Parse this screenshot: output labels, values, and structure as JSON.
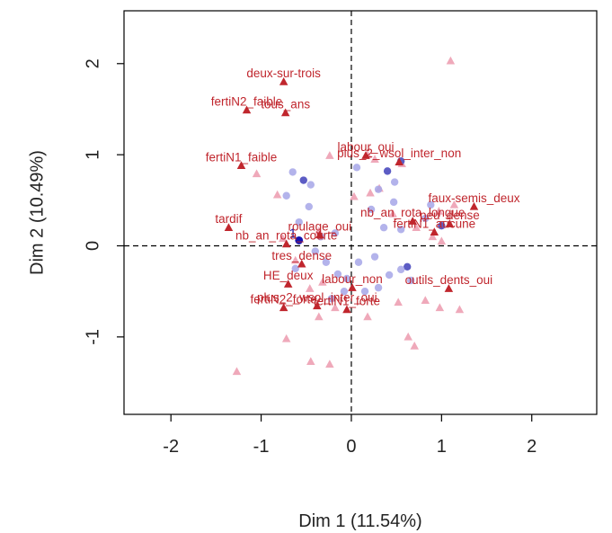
{
  "chart_data": {
    "type": "scatter",
    "xlabel": "Dim 1 (11.54%)",
    "ylabel": "Dim 2 (10.49%)",
    "xlim": [
      -2.52,
      2.72
    ],
    "ylim": [
      -1.85,
      2.58
    ],
    "x_ticks": [
      -2,
      -1,
      0,
      1,
      2
    ],
    "y_ticks": [
      -1,
      0,
      1,
      2
    ],
    "x_tick_labels": [
      "-2",
      "-1",
      "0",
      "1",
      "2"
    ],
    "y_tick_labels": [
      "-1",
      "0",
      "1",
      "2"
    ],
    "reference_lines": {
      "x": 0,
      "y": 0,
      "style": "dashed"
    },
    "grid": false,
    "colors": {
      "category": "#c0262d",
      "category_faded": "#efa9ba",
      "individual": "#a6a6e8",
      "individual_dark": "#5c5cc4",
      "highlight": "#1212b0"
    },
    "categories": [
      {
        "label": "deux-sur-trois",
        "x": -0.75,
        "y": 1.8
      },
      {
        "label": "tous_ans",
        "x": -0.73,
        "y": 1.46
      },
      {
        "label": "fertiN2_faible",
        "x": -1.16,
        "y": 1.49
      },
      {
        "label": "labour_oui",
        "x": 0.16,
        "y": 0.99
      },
      {
        "label": "fertiN1_faible",
        "x": -1.22,
        "y": 0.88
      },
      {
        "label": "plus_2_wsol_inter_non",
        "x": 0.53,
        "y": 0.92
      },
      {
        "label": "faux-semis_deux",
        "x": 1.36,
        "y": 0.43
      },
      {
        "label": "nb_an_rota_longue",
        "x": 0.68,
        "y": 0.27
      },
      {
        "label": "peu_dense",
        "x": 1.09,
        "y": 0.24
      },
      {
        "label": "tardif",
        "x": -1.36,
        "y": 0.2
      },
      {
        "label": "roulage_oui",
        "x": -0.35,
        "y": 0.12
      },
      {
        "label": "fertiN1_aucune",
        "x": 0.92,
        "y": 0.15
      },
      {
        "label": "nb_an_rota_courte",
        "x": -0.72,
        "y": 0.02
      },
      {
        "label": "tres_dense",
        "x": -0.55,
        "y": -0.2
      },
      {
        "label": "HE_deux",
        "x": -0.7,
        "y": -0.42
      },
      {
        "label": "labour_non",
        "x": 0.01,
        "y": -0.46
      },
      {
        "label": "outils_dents_oui",
        "x": 1.08,
        "y": -0.47
      },
      {
        "label": "plus_2_wsol_inter_oui",
        "x": -0.38,
        "y": -0.66
      },
      {
        "label": "fertiN2_forte",
        "x": -0.75,
        "y": -0.68
      },
      {
        "label": "fertiN1_forte",
        "x": -0.05,
        "y": -0.7
      }
    ],
    "individuals_label": "1",
    "individuals": [
      {
        "x": -0.58,
        "y": 0.06,
        "role": "highlight"
      },
      {
        "x": -0.53,
        "y": 0.72,
        "role": "dark"
      },
      {
        "x": 0.55,
        "y": 0.93,
        "role": "dark"
      },
      {
        "x": 0.4,
        "y": 0.82,
        "role": "dark"
      },
      {
        "x": 0.62,
        "y": -0.23,
        "role": "dark"
      },
      {
        "x": 1.0,
        "y": 0.22,
        "role": "dark"
      },
      {
        "x": -0.65,
        "y": 0.81,
        "role": "blue"
      },
      {
        "x": -0.45,
        "y": 0.67,
        "role": "blue"
      },
      {
        "x": -0.72,
        "y": 0.55,
        "role": "blue"
      },
      {
        "x": -0.47,
        "y": 0.43,
        "role": "blue"
      },
      {
        "x": -0.58,
        "y": 0.26,
        "role": "blue"
      },
      {
        "x": -0.4,
        "y": -0.06,
        "role": "blue"
      },
      {
        "x": -0.62,
        "y": -0.25,
        "role": "blue"
      },
      {
        "x": -0.28,
        "y": -0.18,
        "role": "blue"
      },
      {
        "x": -0.15,
        "y": -0.31,
        "role": "blue"
      },
      {
        "x": -0.08,
        "y": -0.5,
        "role": "blue"
      },
      {
        "x": -0.22,
        "y": -0.58,
        "role": "blue"
      },
      {
        "x": 0.06,
        "y": 0.86,
        "role": "blue"
      },
      {
        "x": 0.3,
        "y": 0.62,
        "role": "blue"
      },
      {
        "x": 0.22,
        "y": 0.4,
        "role": "blue"
      },
      {
        "x": 0.47,
        "y": 0.48,
        "role": "blue"
      },
      {
        "x": 0.36,
        "y": 0.2,
        "role": "blue"
      },
      {
        "x": 0.55,
        "y": 0.18,
        "role": "blue"
      },
      {
        "x": 0.82,
        "y": 0.3,
        "role": "blue"
      },
      {
        "x": 0.88,
        "y": 0.45,
        "role": "blue"
      },
      {
        "x": 0.08,
        "y": -0.18,
        "role": "blue"
      },
      {
        "x": 0.26,
        "y": -0.12,
        "role": "blue"
      },
      {
        "x": 0.42,
        "y": -0.32,
        "role": "blue"
      },
      {
        "x": 0.55,
        "y": -0.26,
        "role": "blue"
      },
      {
        "x": 0.66,
        "y": -0.38,
        "role": "blue"
      },
      {
        "x": 0.3,
        "y": -0.46,
        "role": "blue"
      },
      {
        "x": -0.05,
        "y": -0.36,
        "role": "blue"
      },
      {
        "x": 0.15,
        "y": -0.5,
        "role": "blue"
      },
      {
        "x": -0.34,
        "y": 0.1,
        "role": "blue"
      },
      {
        "x": -0.18,
        "y": 0.14,
        "role": "blue"
      },
      {
        "x": 0.48,
        "y": 0.7,
        "role": "blue"
      }
    ],
    "faded_categories": [
      {
        "x": 1.1,
        "y": 2.03
      },
      {
        "x": 0.18,
        "y": 1.0
      },
      {
        "x": 0.26,
        "y": 0.95
      },
      {
        "x": -0.24,
        "y": 0.99
      },
      {
        "x": -1.05,
        "y": 0.79
      },
      {
        "x": -0.82,
        "y": 0.56
      },
      {
        "x": 0.03,
        "y": 0.54
      },
      {
        "x": 0.21,
        "y": 0.58
      },
      {
        "x": 0.31,
        "y": 0.63
      },
      {
        "x": 0.46,
        "y": 0.35
      },
      {
        "x": 0.97,
        "y": 0.38
      },
      {
        "x": 1.0,
        "y": 0.05
      },
      {
        "x": 0.72,
        "y": 0.2
      },
      {
        "x": -0.76,
        "y": 0.08
      },
      {
        "x": -0.36,
        "y": 0.16
      },
      {
        "x": -0.62,
        "y": -0.16
      },
      {
        "x": -0.32,
        "y": -0.4
      },
      {
        "x": -0.46,
        "y": -0.47
      },
      {
        "x": -0.18,
        "y": -0.68
      },
      {
        "x": -0.36,
        "y": -0.78
      },
      {
        "x": 0.18,
        "y": -0.78
      },
      {
        "x": 0.52,
        "y": -0.62
      },
      {
        "x": 0.82,
        "y": -0.6
      },
      {
        "x": 0.98,
        "y": -0.68
      },
      {
        "x": 1.2,
        "y": -0.7
      },
      {
        "x": 0.63,
        "y": -1.0
      },
      {
        "x": 0.7,
        "y": -1.1
      },
      {
        "x": -0.72,
        "y": -1.02
      },
      {
        "x": -0.45,
        "y": -1.27
      },
      {
        "x": -1.27,
        "y": -1.38
      },
      {
        "x": -0.24,
        "y": -1.3
      },
      {
        "x": 0.9,
        "y": 0.1
      },
      {
        "x": 0.56,
        "y": 0.9
      },
      {
        "x": 1.14,
        "y": 0.45
      }
    ]
  }
}
